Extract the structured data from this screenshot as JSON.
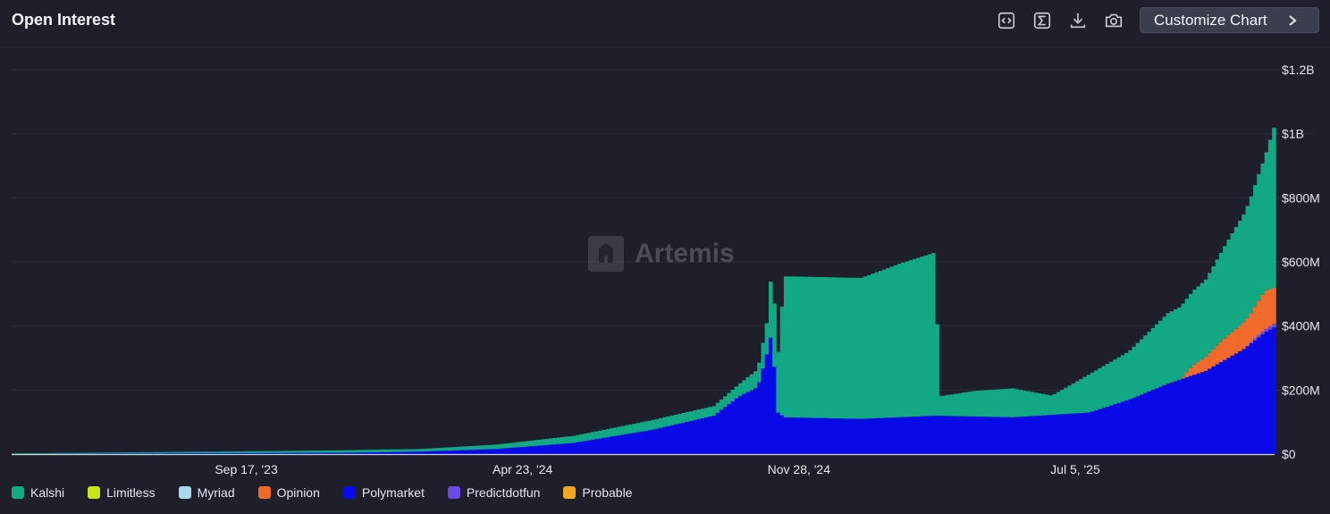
{
  "header": {
    "title": "Open Interest",
    "customize_label": "Customize Chart",
    "icons": [
      "embed-icon",
      "sigma-icon",
      "download-icon",
      "camera-icon",
      "chevron-right-icon"
    ]
  },
  "watermark": {
    "text": "Artemis"
  },
  "chart_data": {
    "type": "bar",
    "stacked": true,
    "title": "Open Interest",
    "x_ticks": [
      "Sep 17, '23",
      "Apr 23, '24",
      "Nov 28, '24",
      "Jul 5, '25"
    ],
    "y_ticks": [
      "$0",
      "$200M",
      "$400M",
      "$600M",
      "$800M",
      "$1B",
      "$1.2B"
    ],
    "ylim": [
      0,
      1200
    ],
    "y_unit": "$M",
    "x_range": [
      "2023-03-15",
      "2025-12-10"
    ],
    "grid": true,
    "legend_position": "bottom",
    "series": [
      {
        "name": "Kalshi",
        "color": "#13a884",
        "points": [
          [
            "2023-03-15",
            2
          ],
          [
            "2023-06-01",
            3
          ],
          [
            "2023-09-01",
            5
          ],
          [
            "2023-12-01",
            8
          ],
          [
            "2024-02-01",
            8
          ],
          [
            "2024-04-01",
            14
          ],
          [
            "2024-06-01",
            22
          ],
          [
            "2024-08-01",
            30
          ],
          [
            "2024-09-20",
            30
          ],
          [
            "2024-10-10",
            38
          ],
          [
            "2024-10-25",
            55
          ],
          [
            "2024-11-03",
            110
          ],
          [
            "2024-11-06",
            305
          ],
          [
            "2024-11-08",
            90
          ],
          [
            "2024-11-15",
            440
          ],
          [
            "2024-12-15",
            440
          ],
          [
            "2025-01-15",
            440
          ],
          [
            "2025-02-15",
            480
          ],
          [
            "2025-03-15",
            510
          ],
          [
            "2025-03-17",
            60
          ],
          [
            "2025-04-15",
            80
          ],
          [
            "2025-05-15",
            90
          ],
          [
            "2025-06-15",
            60
          ],
          [
            "2025-07-15",
            120
          ],
          [
            "2025-08-15",
            150
          ],
          [
            "2025-09-15",
            220
          ],
          [
            "2025-10-15",
            240
          ],
          [
            "2025-11-15",
            340
          ],
          [
            "2025-12-01",
            420
          ],
          [
            "2025-12-08",
            500
          ],
          [
            "2025-12-10",
            520
          ]
        ]
      },
      {
        "name": "Limitless",
        "color": "#c6e619",
        "points": [
          [
            "2023-03-15",
            0
          ],
          [
            "2025-12-10",
            0
          ]
        ]
      },
      {
        "name": "Myriad",
        "color": "#a8d8ea",
        "points": [
          [
            "2023-03-15",
            0
          ],
          [
            "2025-12-10",
            0
          ]
        ]
      },
      {
        "name": "Opinion",
        "color": "#f06a2b",
        "points": [
          [
            "2023-03-15",
            0
          ],
          [
            "2025-09-25",
            0
          ],
          [
            "2025-10-05",
            30
          ],
          [
            "2025-11-01",
            70
          ],
          [
            "2025-11-20",
            90
          ],
          [
            "2025-12-01",
            120
          ],
          [
            "2025-12-10",
            110
          ]
        ]
      },
      {
        "name": "Polymarket",
        "color": "#0a0ae8",
        "points": [
          [
            "2023-03-15",
            0
          ],
          [
            "2023-06-01",
            2
          ],
          [
            "2023-09-01",
            3
          ],
          [
            "2023-12-01",
            4
          ],
          [
            "2024-02-01",
            8
          ],
          [
            "2024-04-01",
            16
          ],
          [
            "2024-06-01",
            35
          ],
          [
            "2024-08-01",
            75
          ],
          [
            "2024-09-20",
            120
          ],
          [
            "2024-10-10",
            180
          ],
          [
            "2024-10-25",
            210
          ],
          [
            "2024-11-03",
            340
          ],
          [
            "2024-11-06",
            410
          ],
          [
            "2024-11-08",
            135
          ],
          [
            "2024-11-15",
            115
          ],
          [
            "2025-01-15",
            110
          ],
          [
            "2025-03-15",
            120
          ],
          [
            "2025-05-15",
            115
          ],
          [
            "2025-07-15",
            130
          ],
          [
            "2025-08-15",
            170
          ],
          [
            "2025-09-15",
            220
          ],
          [
            "2025-10-15",
            260
          ],
          [
            "2025-11-15",
            330
          ],
          [
            "2025-12-01",
            380
          ],
          [
            "2025-12-10",
            400
          ]
        ]
      },
      {
        "name": "Predictdotfun",
        "color": "#6b4de6",
        "points": [
          [
            "2023-03-15",
            0
          ],
          [
            "2025-11-15",
            0
          ],
          [
            "2025-11-25",
            8
          ],
          [
            "2025-12-10",
            12
          ]
        ]
      },
      {
        "name": "Probable",
        "color": "#f5a623",
        "points": [
          [
            "2023-03-15",
            0
          ],
          [
            "2025-12-10",
            0
          ]
        ]
      }
    ]
  }
}
